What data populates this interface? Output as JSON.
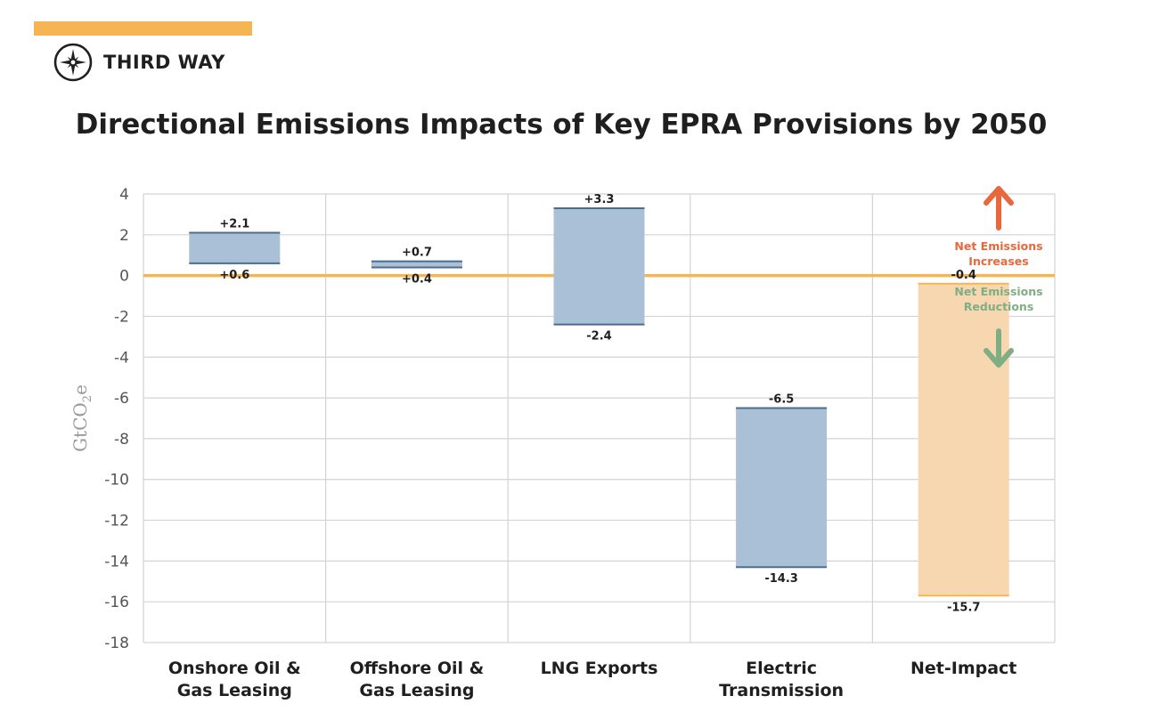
{
  "brand": {
    "name": "THIRD WAY",
    "accent_color": "#f5b553",
    "logo_icon": "compass-star-icon"
  },
  "chart_data": {
    "type": "bar",
    "title": "Directional Emissions Impacts of Key EPRA Provisions by 2050",
    "ylabel_main": "GtCO",
    "ylabel_sub": "2",
    "ylabel_tail": "e",
    "ylim": [
      -18,
      4
    ],
    "yticks": [
      4,
      2,
      0,
      -2,
      -4,
      -6,
      -8,
      -10,
      -12,
      -14,
      -16,
      -18
    ],
    "grid": true,
    "zero_line_color": "#f5b553",
    "categories": [
      [
        "Onshore Oil &",
        "Gas Leasing"
      ],
      [
        "Offshore Oil &",
        "Gas Leasing"
      ],
      [
        "LNG Exports"
      ],
      [
        "Electric",
        "Transmission"
      ],
      [
        "Net-Impact"
      ]
    ],
    "series": [
      {
        "ranges": [
          {
            "high": 2.1,
            "low": 0.6,
            "high_label": "+2.1",
            "low_label": "+0.6",
            "color": "#a9c0d6",
            "edge": "#4d6d8f"
          },
          {
            "high": 0.7,
            "low": 0.4,
            "high_label": "+0.7",
            "low_label": "+0.4",
            "color": "#a9c0d6",
            "edge": "#4d6d8f"
          },
          {
            "high": 3.3,
            "low": -2.4,
            "high_label": "+3.3",
            "low_label": "-2.4",
            "color": "#a9c0d6",
            "edge": "#4d6d8f"
          },
          {
            "high": -6.5,
            "low": -14.3,
            "high_label": "-6.5",
            "low_label": "-14.3",
            "color": "#a9c0d6",
            "edge": "#4d6d8f"
          },
          {
            "high": -0.4,
            "low": -15.7,
            "high_label": "-0.4",
            "low_label": "-15.7",
            "color": "#f7d7b0",
            "edge": "#f5b553"
          }
        ]
      }
    ],
    "annotations": {
      "increase": {
        "lines": [
          "Net Emissions",
          "Increases"
        ],
        "color": "#e8673c",
        "icon": "arrow-up-icon"
      },
      "decrease": {
        "lines": [
          "Net Emissions",
          "Reductions"
        ],
        "color": "#7fae84",
        "icon": "arrow-down-icon"
      }
    }
  }
}
